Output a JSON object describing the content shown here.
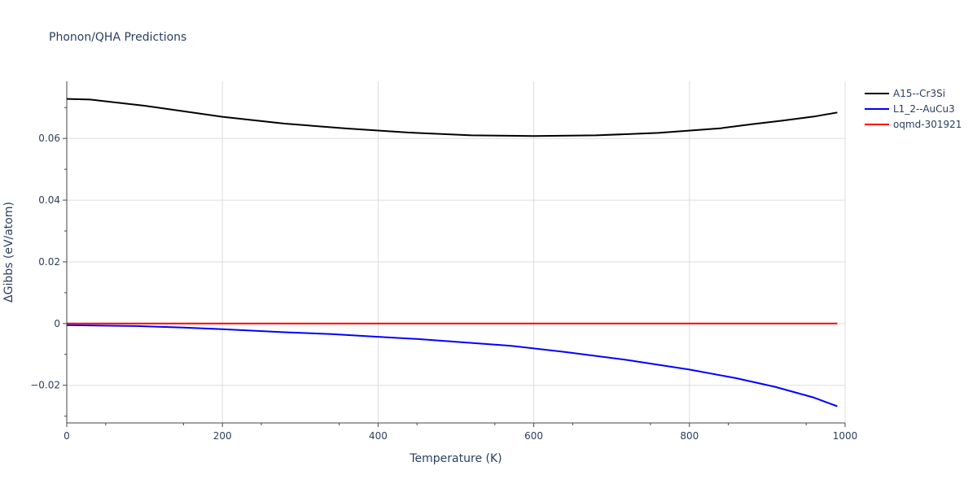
{
  "chart_data": {
    "type": "line",
    "title": "Phonon/QHA Predictions",
    "xlabel": "Temperature (K)",
    "ylabel": "ΔGibbs (eV/atom)",
    "xlim": [
      0,
      1000
    ],
    "ylim": [
      -0.0322,
      0.0785
    ],
    "grid": true,
    "legend_position": "top-right",
    "x_ticks": [
      {
        "value": 0,
        "label": "0"
      },
      {
        "value": 200,
        "label": "200"
      },
      {
        "value": 400,
        "label": "400"
      },
      {
        "value": 600,
        "label": "600"
      },
      {
        "value": 800,
        "label": "800"
      },
      {
        "value": 1000,
        "label": "1000"
      }
    ],
    "y_ticks": [
      {
        "value": -0.02,
        "label": "−0.02"
      },
      {
        "value": 0,
        "label": "0"
      },
      {
        "value": 0.02,
        "label": "0.02"
      },
      {
        "value": 0.04,
        "label": "0.04"
      },
      {
        "value": 0.06,
        "label": "0.06"
      }
    ],
    "series": [
      {
        "name": "A15--Cr3Si",
        "color": "#000000",
        "x": [
          0,
          30,
          100,
          200,
          280,
          360,
          440,
          520,
          600,
          680,
          760,
          840,
          880,
          920,
          960,
          990
        ],
        "y": [
          0.0728,
          0.0726,
          0.0706,
          0.067,
          0.0648,
          0.0632,
          0.0619,
          0.061,
          0.0608,
          0.061,
          0.0618,
          0.0633,
          0.0646,
          0.0658,
          0.0671,
          0.0684
        ]
      },
      {
        "name": "L1_2--AuCu3",
        "color": "#0000ff",
        "x": [
          0,
          30,
          90,
          150,
          200,
          280,
          340,
          400,
          450,
          500,
          570,
          640,
          720,
          800,
          860,
          910,
          960,
          990
        ],
        "y": [
          -0.0005,
          -0.0006,
          -0.0008,
          -0.0013,
          -0.0018,
          -0.0028,
          -0.0034,
          -0.0043,
          -0.005,
          -0.0059,
          -0.0072,
          -0.0092,
          -0.0118,
          -0.0149,
          -0.0177,
          -0.0205,
          -0.024,
          -0.0268
        ]
      },
      {
        "name": "oqmd-301921",
        "color": "#ff0000",
        "x": [
          0,
          990
        ],
        "y": [
          0,
          0
        ]
      }
    ]
  }
}
